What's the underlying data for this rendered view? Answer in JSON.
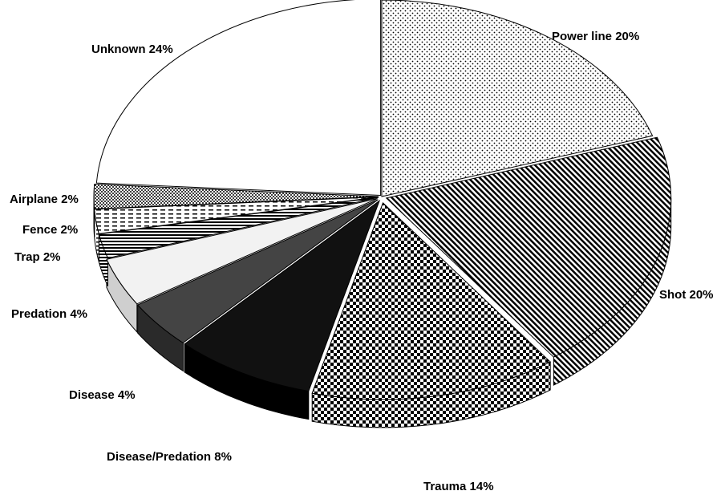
{
  "chart_data": {
    "type": "pie",
    "style": "3d-exploded-patterned",
    "title": "",
    "slices": [
      {
        "label": "Power line 20%",
        "category": "Power line",
        "value": 20,
        "pattern": "dots-sparse"
      },
      {
        "label": "Shot 20%",
        "category": "Shot",
        "value": 20,
        "pattern": "diagonal-stripes"
      },
      {
        "label": "Trauma 14%",
        "category": "Trauma",
        "value": 14,
        "pattern": "checker"
      },
      {
        "label": "Disease/Predation 8%",
        "category": "Disease/Predation",
        "value": 8,
        "pattern": "solid-black"
      },
      {
        "label": "Disease 4%",
        "category": "Disease",
        "value": 4,
        "pattern": "solid-dark-gray"
      },
      {
        "label": "Predation 4%",
        "category": "Predation",
        "value": 4,
        "pattern": "solid-light-gray"
      },
      {
        "label": "Trap 2%",
        "category": "Trap",
        "value": 2,
        "pattern": "horizontal-stripes"
      },
      {
        "label": "Fence 2%",
        "category": "Fence",
        "value": 2,
        "pattern": "dashed-lines"
      },
      {
        "label": "Airplane 2%",
        "category": "Airplane",
        "value": 2,
        "pattern": "dots-dense"
      },
      {
        "label": "Unknown 24%",
        "category": "Unknown",
        "value": 24,
        "pattern": "white"
      }
    ],
    "legend": "none",
    "colors": {
      "edge": "#000000",
      "solid_black": "#111111",
      "dark_gray": "#444444",
      "light_gray": "#f2f2f2"
    }
  }
}
